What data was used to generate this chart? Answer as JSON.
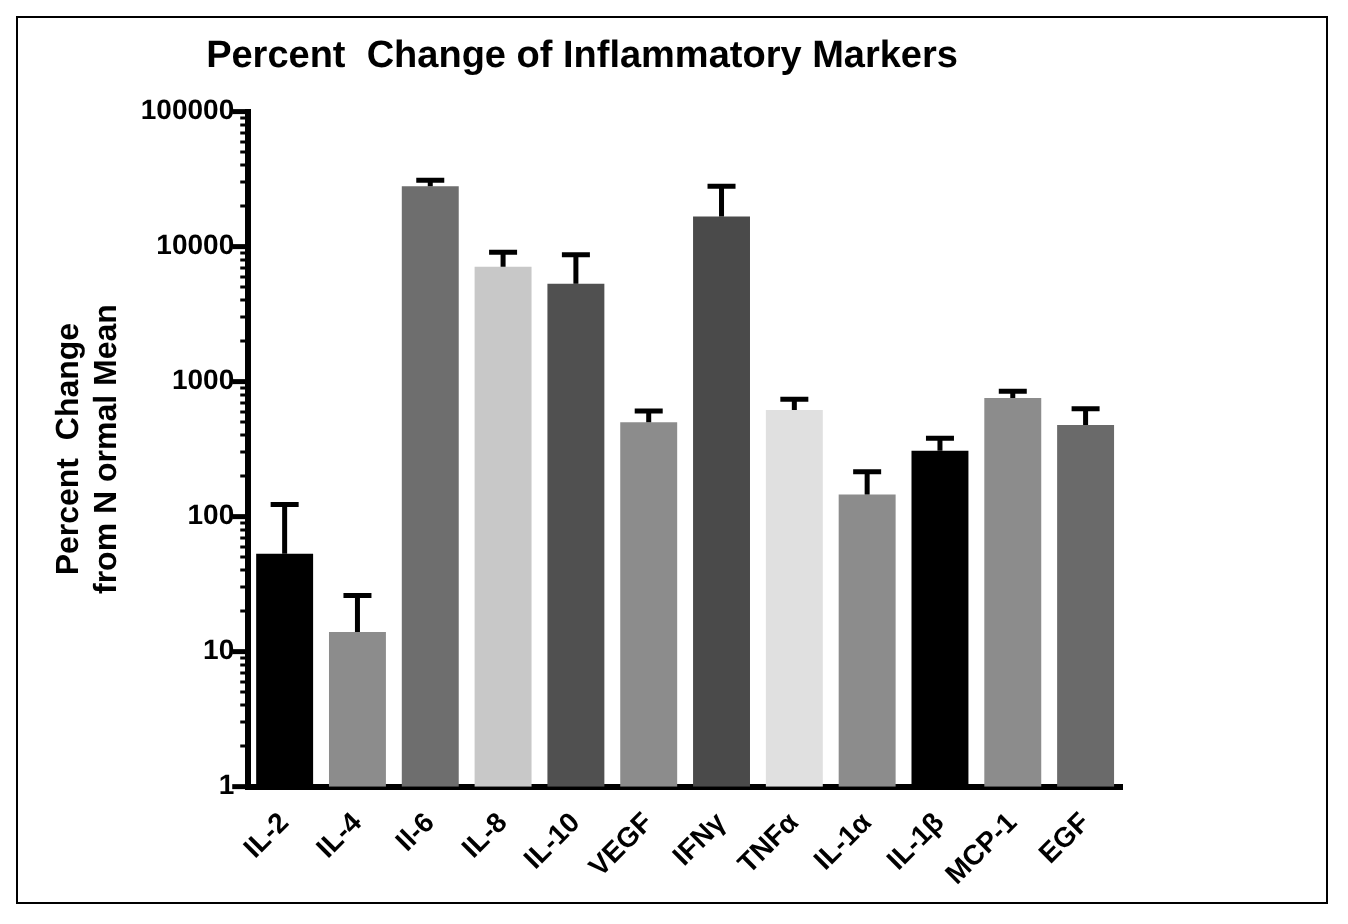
{
  "chart_data": {
    "type": "bar",
    "title": "Percent  Change of Inflammatory Markers",
    "ylabel": "Percent  Change\nfrom N ormal Mean",
    "categories": [
      "IL-2",
      "IL-4",
      "Il-6",
      "IL-8",
      "IL-10",
      "VEGF",
      "IFNγ",
      "TNFα",
      "IL-1α",
      "IL-1β",
      "MCP-1",
      "EGF"
    ],
    "values": [
      53,
      14,
      28000,
      7100,
      5300,
      500,
      16700,
      615,
      146,
      307,
      755,
      478
    ],
    "errors": [
      [
        53,
        123
      ],
      [
        14,
        26
      ],
      [
        28000,
        31000
      ],
      [
        7100,
        9100
      ],
      [
        5300,
        8700
      ],
      [
        500,
        605
      ],
      [
        16700,
        28000
      ],
      [
        615,
        740
      ],
      [
        146,
        215
      ],
      [
        307,
        380
      ],
      [
        755,
        850
      ],
      [
        478,
        630
      ]
    ],
    "colors": [
      "#000000",
      "#8c8c8c",
      "#6e6e6e",
      "#c8c8c8",
      "#505050",
      "#8c8c8c",
      "#4a4a4a",
      "#e0e0e0",
      "#8c8c8c",
      "#000000",
      "#8c8c8c",
      "#6a6a6a"
    ],
    "log": true,
    "ylim": [
      1,
      100000
    ],
    "yticks": [
      1,
      {
        "value": 2,
        "label": null
      },
      {
        "value": 3,
        "label": null
      },
      {
        "value": 4,
        "label": null
      },
      {
        "value": 5,
        "label": null
      },
      {
        "value": 6,
        "label": null
      },
      {
        "value": 7,
        "label": null
      },
      {
        "value": 8,
        "label": null
      },
      {
        "value": 9,
        "label": null
      },
      10,
      {
        "value": 20,
        "label": null
      },
      {
        "value": 30,
        "label": null
      },
      {
        "value": 40,
        "label": null
      },
      {
        "value": 50,
        "label": null
      },
      {
        "value": 60,
        "label": null
      },
      {
        "value": 70,
        "label": null
      },
      {
        "value": 80,
        "label": null
      },
      {
        "value": 90,
        "label": null
      },
      100,
      {
        "value": 200,
        "label": null
      },
      {
        "value": 300,
        "label": null
      },
      {
        "value": 400,
        "label": null
      },
      {
        "value": 500,
        "label": null
      },
      {
        "value": 600,
        "label": null
      },
      {
        "value": 700,
        "label": null
      },
      {
        "value": 800,
        "label": null
      },
      {
        "value": 900,
        "label": null
      },
      1000,
      {
        "value": 2000,
        "label": null
      },
      {
        "value": 3000,
        "label": null
      },
      {
        "value": 4000,
        "label": null
      },
      {
        "value": 5000,
        "label": null
      },
      {
        "value": 6000,
        "label": null
      },
      {
        "value": 7000,
        "label": null
      },
      {
        "value": 8000,
        "label": null
      },
      {
        "value": 9000,
        "label": null
      },
      10000,
      {
        "value": 20000,
        "label": null
      },
      {
        "value": 30000,
        "label": null
      },
      {
        "value": 40000,
        "label": null
      },
      {
        "value": 50000,
        "label": null
      },
      {
        "value": 60000,
        "label": null
      },
      {
        "value": 70000,
        "label": null
      },
      {
        "value": 80000,
        "label": null
      },
      {
        "value": 90000,
        "label": null
      },
      100000
    ],
    "grid": false,
    "legend": false
  }
}
